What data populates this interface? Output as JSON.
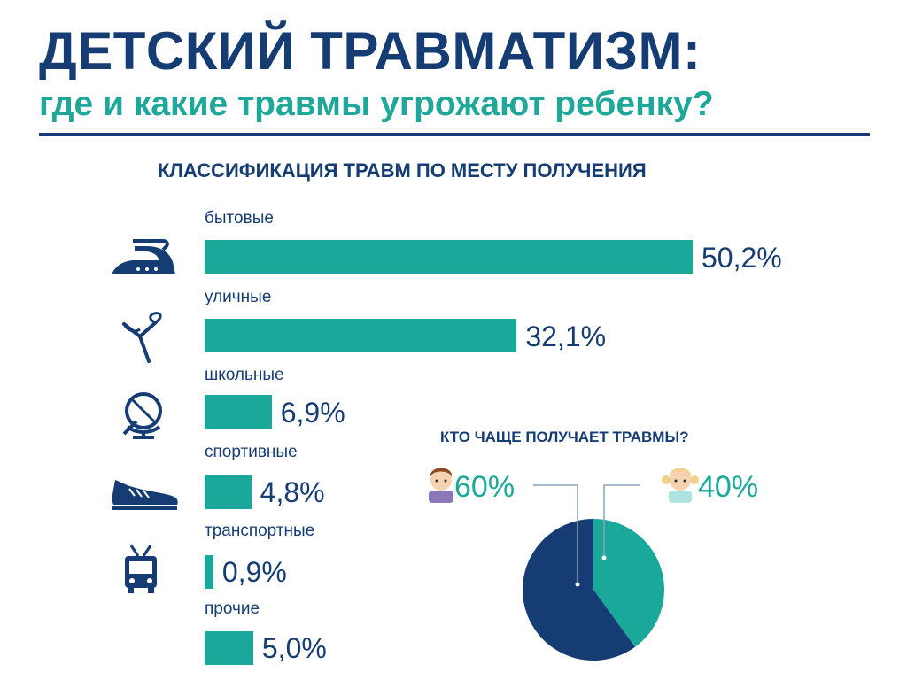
{
  "header": {
    "title": "ДЕТСКИЙ ТРАВМАТИЗМ:",
    "subtitle": "где и какие травмы угрожают ребенку?"
  },
  "colors": {
    "navy": "#163d73",
    "teal": "#1aa89b"
  },
  "chart_data": [
    {
      "type": "bar",
      "orientation": "horizontal",
      "title": "КЛАССИФИКАЦИЯ ТРАВМ ПО МЕСТУ ПОЛУЧЕНИЯ",
      "categories": [
        "бытовые",
        "уличные",
        "школьные",
        "спортивные",
        "транспортные",
        "прочие"
      ],
      "values": [
        50.2,
        32.1,
        6.9,
        4.8,
        0.9,
        5.0
      ],
      "value_labels": [
        "50,2%",
        "32,1%",
        "6,9%",
        "4,8%",
        "0,9%",
        "5,0%"
      ],
      "icons": [
        "iron-icon",
        "slingshot-icon",
        "globe-icon",
        "sneaker-icon",
        "trolleybus-icon",
        "none"
      ],
      "color": "#1aa89b"
    },
    {
      "type": "pie",
      "title": "КТО ЧАЩЕ ПОЛУЧАЕТ ТРАВМЫ?",
      "slices": [
        {
          "value": 60,
          "label": "60%",
          "icon": "boy-icon",
          "color": "#163d73"
        },
        {
          "value": 40,
          "label": "40%",
          "icon": "girl-icon",
          "color": "#1aa89b"
        }
      ]
    }
  ]
}
